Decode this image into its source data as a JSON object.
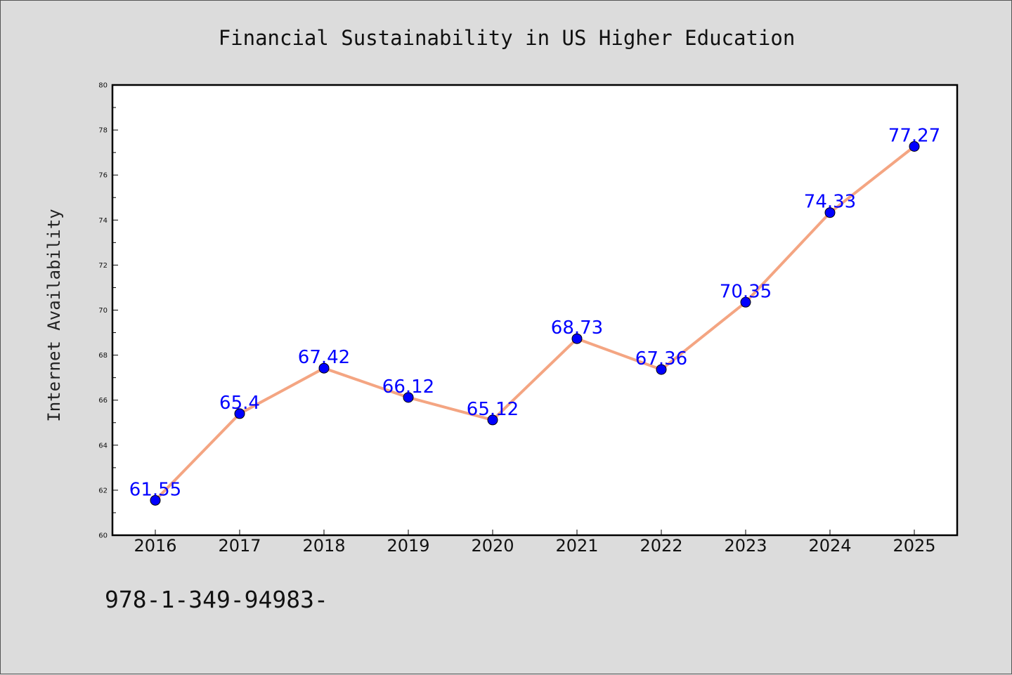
{
  "chart_data": {
    "type": "line",
    "title": "Financial Sustainability in US Higher Education",
    "ylabel": "Internet Availability",
    "categories": [
      "2016",
      "2017",
      "2018",
      "2019",
      "2020",
      "2021",
      "2022",
      "2023",
      "2024",
      "2025"
    ],
    "values": [
      61.55,
      65.4,
      67.42,
      66.12,
      65.12,
      68.73,
      67.36,
      70.35,
      74.33,
      77.27
    ],
    "data_labels": [
      "61.55",
      "65.4",
      "67.42",
      "66.12",
      "65.12",
      "68.73",
      "67.36",
      "70.35",
      "74.33",
      "77.27"
    ],
    "ylim": [
      60,
      80
    ],
    "yticks": [
      "60",
      "62",
      "64",
      "66",
      "68",
      "70",
      "72",
      "74",
      "76",
      "78",
      "80"
    ],
    "grid": false,
    "line_color": "#f4a582",
    "marker_color": "#0000ff",
    "label_color": "#0000ff"
  },
  "footnote": "978-1-349-94983-"
}
